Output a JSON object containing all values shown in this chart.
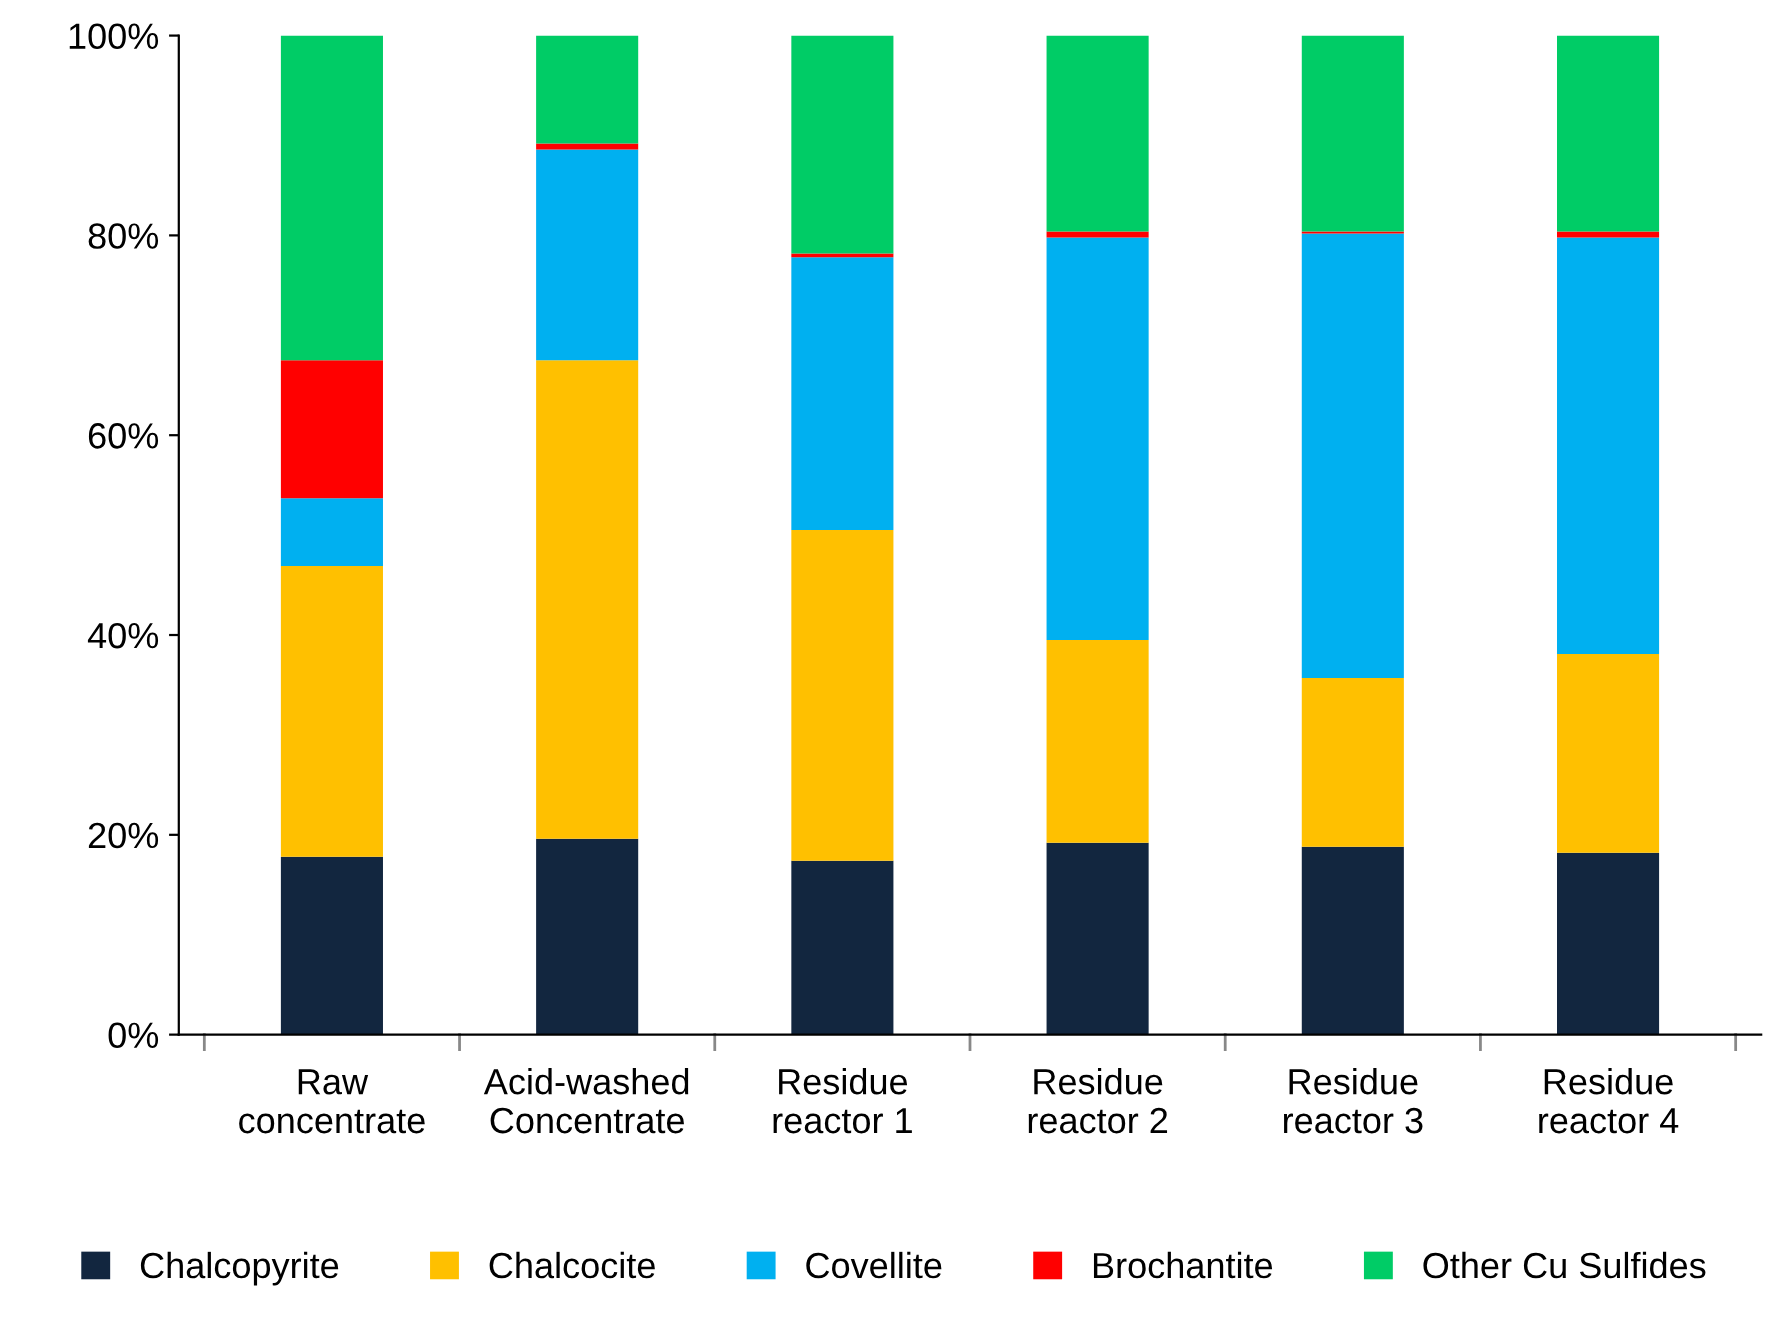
{
  "chart_data": {
    "type": "bar",
    "stacked": true,
    "categories": [
      "Raw\nconcentrate",
      "Acid-washed\nConcentrate",
      "Residue\nreactor 1",
      "Residue\nreactor 2",
      "Residue\nreactor 3",
      "Residue\nreactor 4"
    ],
    "series": [
      {
        "name": "Chalcopyrite",
        "color": "#12263f",
        "values": [
          17.8,
          19.6,
          17.4,
          19.2,
          18.8,
          18.2
        ]
      },
      {
        "name": "Chalcocite",
        "color": "#ffc000",
        "values": [
          29.1,
          47.9,
          33.1,
          20.3,
          16.9,
          19.9
        ]
      },
      {
        "name": "Covellite",
        "color": "#00b0f0",
        "values": [
          6.8,
          21.1,
          27.3,
          40.3,
          44.5,
          41.7
        ]
      },
      {
        "name": "Brochantite",
        "color": "#ff0000",
        "values": [
          13.8,
          0.6,
          0.4,
          0.6,
          0.2,
          0.6
        ]
      },
      {
        "name": "Other Cu Sulfides",
        "color": "#00cc66",
        "values": [
          32.5,
          10.8,
          21.8,
          19.6,
          19.6,
          19.6
        ]
      }
    ],
    "ylim": [
      0,
      100
    ],
    "yticks": [
      {
        "value": 0,
        "label": "0%"
      },
      {
        "value": 20,
        "label": "20%"
      },
      {
        "value": 40,
        "label": "40%"
      },
      {
        "value": 60,
        "label": "60%"
      },
      {
        "value": 80,
        "label": "80%"
      },
      {
        "value": 100,
        "label": "100%"
      }
    ],
    "grid": false,
    "legend": "bottom"
  }
}
